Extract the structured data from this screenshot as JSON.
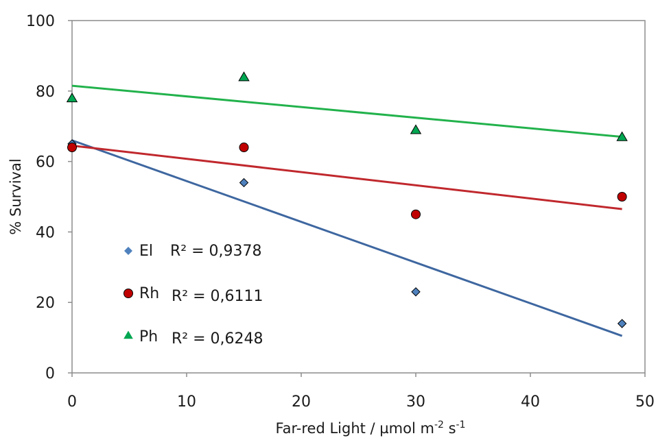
{
  "chart_data": {
    "type": "scatter",
    "title": "",
    "xlabel": "Far-red Light / µmol m",
    "xlabel_sup1": "-2",
    "xlabel_mid": " s",
    "xlabel_sup2": "-1",
    "ylabel": "% Survival",
    "xlim": [
      0,
      50
    ],
    "ylim": [
      0,
      100
    ],
    "xticks": [
      0,
      10,
      20,
      30,
      40,
      50
    ],
    "yticks": [
      0,
      20,
      40,
      60,
      80,
      100
    ],
    "grid": false,
    "legend_position": "lower-left",
    "series": [
      {
        "name": "El",
        "marker": "diamond",
        "color": "#4F81BD",
        "line_color": "#3E67A0",
        "x": [
          0,
          15,
          30,
          48
        ],
        "y": [
          65,
          54,
          23,
          14
        ],
        "trendline": {
          "x": [
            0,
            48
          ],
          "y": [
            66,
            10.5
          ]
        },
        "r2_label": "R² = 0,9378"
      },
      {
        "name": "Rh",
        "marker": "circle",
        "color": "#C00000",
        "line_color": "#C0282D",
        "x": [
          0,
          15,
          30,
          48
        ],
        "y": [
          64,
          64,
          45,
          50
        ],
        "trendline": {
          "x": [
            0,
            48
          ],
          "y": [
            64.5,
            46.5
          ]
        },
        "r2_label": "R² = 0,6111"
      },
      {
        "name": "Ph",
        "marker": "triangle",
        "color": "#00A651",
        "line_color": "#22B24C",
        "x": [
          0,
          15,
          30,
          48
        ],
        "y": [
          78,
          84,
          69,
          67
        ],
        "trendline": {
          "x": [
            0,
            48
          ],
          "y": [
            81.5,
            67
          ]
        },
        "r2_label": "R² = 0,6248"
      }
    ]
  }
}
